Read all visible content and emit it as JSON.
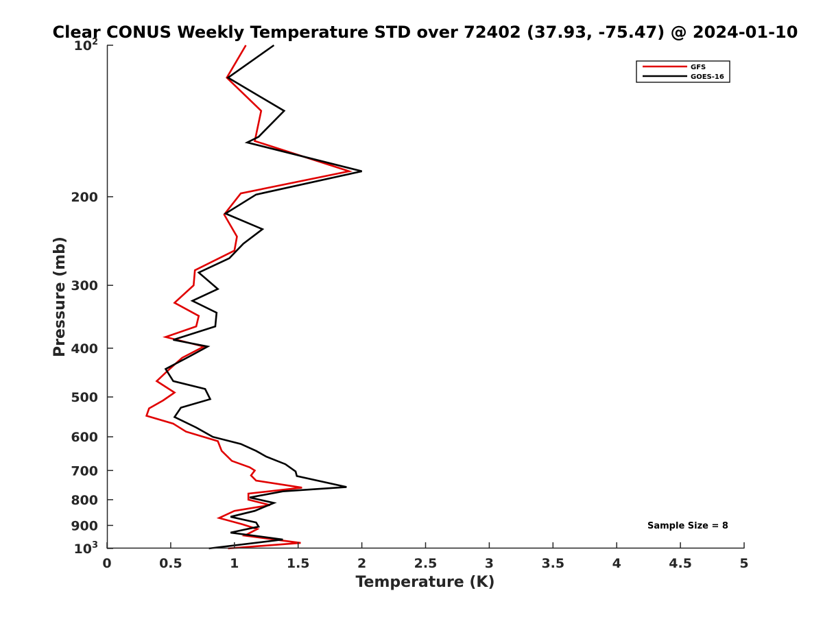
{
  "chart_data": {
    "type": "line",
    "title": "Clear CONUS Weekly Temperature STD over 72402 (37.93, -75.47) @ 2024-01-10",
    "xlabel": "Temperature (K)",
    "ylabel": "Pressure (mb)",
    "xlim": [
      0,
      5
    ],
    "ylim": [
      100,
      1000
    ],
    "y_scale": "log",
    "y_reversed": true,
    "grid": false,
    "legend_position": "top-right",
    "x_ticks": [
      "0",
      "0.5",
      "1",
      "1.5",
      "2",
      "2.5",
      "3",
      "3.5",
      "4",
      "4.5",
      "5"
    ],
    "y_ticks": [
      {
        "value": 100,
        "base": "10",
        "exp": "2"
      },
      {
        "value": 200,
        "label": "200"
      },
      {
        "value": 300,
        "label": "300"
      },
      {
        "value": 400,
        "label": "400"
      },
      {
        "value": 500,
        "label": "500"
      },
      {
        "value": 600,
        "label": "600"
      },
      {
        "value": 700,
        "label": "700"
      },
      {
        "value": 800,
        "label": "800"
      },
      {
        "value": 900,
        "label": "900"
      },
      {
        "value": 1000,
        "base": "10",
        "exp": "3"
      }
    ],
    "annotation": "Sample Size = 8",
    "series": [
      {
        "name": "GFS",
        "color": "#e00000",
        "points": [
          [
            1.09,
            100
          ],
          [
            0.94,
            116
          ],
          [
            1.21,
            135
          ],
          [
            1.16,
            155
          ],
          [
            1.9,
            178
          ],
          [
            1.05,
            197
          ],
          [
            0.92,
            217
          ],
          [
            1.02,
            240
          ],
          [
            1.0,
            256
          ],
          [
            0.69,
            280
          ],
          [
            0.68,
            300
          ],
          [
            0.53,
            325
          ],
          [
            0.72,
            345
          ],
          [
            0.7,
            362
          ],
          [
            0.46,
            380
          ],
          [
            0.76,
            397
          ],
          [
            0.59,
            418
          ],
          [
            0.47,
            445
          ],
          [
            0.39,
            465
          ],
          [
            0.53,
            490
          ],
          [
            0.44,
            508
          ],
          [
            0.33,
            527
          ],
          [
            0.31,
            545
          ],
          [
            0.52,
            565
          ],
          [
            0.62,
            586
          ],
          [
            0.87,
            612
          ],
          [
            0.9,
            640
          ],
          [
            0.98,
            670
          ],
          [
            1.12,
            690
          ],
          [
            1.16,
            700
          ],
          [
            1.13,
            716
          ],
          [
            1.17,
            733
          ],
          [
            1.53,
            757
          ],
          [
            1.11,
            778
          ],
          [
            1.11,
            800
          ],
          [
            1.28,
            820
          ],
          [
            1.0,
            842
          ],
          [
            0.88,
            870
          ],
          [
            1.06,
            895
          ],
          [
            1.18,
            915
          ],
          [
            1.08,
            943
          ],
          [
            1.52,
            975
          ],
          [
            0.95,
            1000
          ]
        ]
      },
      {
        "name": "GOES-16",
        "color": "#000000",
        "points": [
          [
            1.31,
            100
          ],
          [
            0.95,
            116
          ],
          [
            1.39,
            135
          ],
          [
            1.19,
            152
          ],
          [
            1.1,
            156
          ],
          [
            2.0,
            178
          ],
          [
            1.17,
            198
          ],
          [
            0.93,
            216
          ],
          [
            1.22,
            232
          ],
          [
            1.07,
            248
          ],
          [
            0.96,
            265
          ],
          [
            0.72,
            283
          ],
          [
            0.87,
            305
          ],
          [
            0.67,
            322
          ],
          [
            0.86,
            340
          ],
          [
            0.85,
            362
          ],
          [
            0.52,
            385
          ],
          [
            0.79,
            397
          ],
          [
            0.65,
            415
          ],
          [
            0.46,
            440
          ],
          [
            0.52,
            465
          ],
          [
            0.77,
            482
          ],
          [
            0.81,
            505
          ],
          [
            0.58,
            525
          ],
          [
            0.53,
            548
          ],
          [
            0.7,
            575
          ],
          [
            0.83,
            600
          ],
          [
            1.05,
            620
          ],
          [
            1.17,
            640
          ],
          [
            1.25,
            657
          ],
          [
            1.4,
            680
          ],
          [
            1.48,
            703
          ],
          [
            1.49,
            718
          ],
          [
            1.88,
            755
          ],
          [
            1.38,
            770
          ],
          [
            1.12,
            792
          ],
          [
            1.31,
            812
          ],
          [
            1.16,
            842
          ],
          [
            0.97,
            865
          ],
          [
            1.17,
            888
          ],
          [
            1.19,
            905
          ],
          [
            0.97,
            930
          ],
          [
            1.38,
            960
          ],
          [
            0.8,
            1000
          ]
        ]
      }
    ]
  }
}
